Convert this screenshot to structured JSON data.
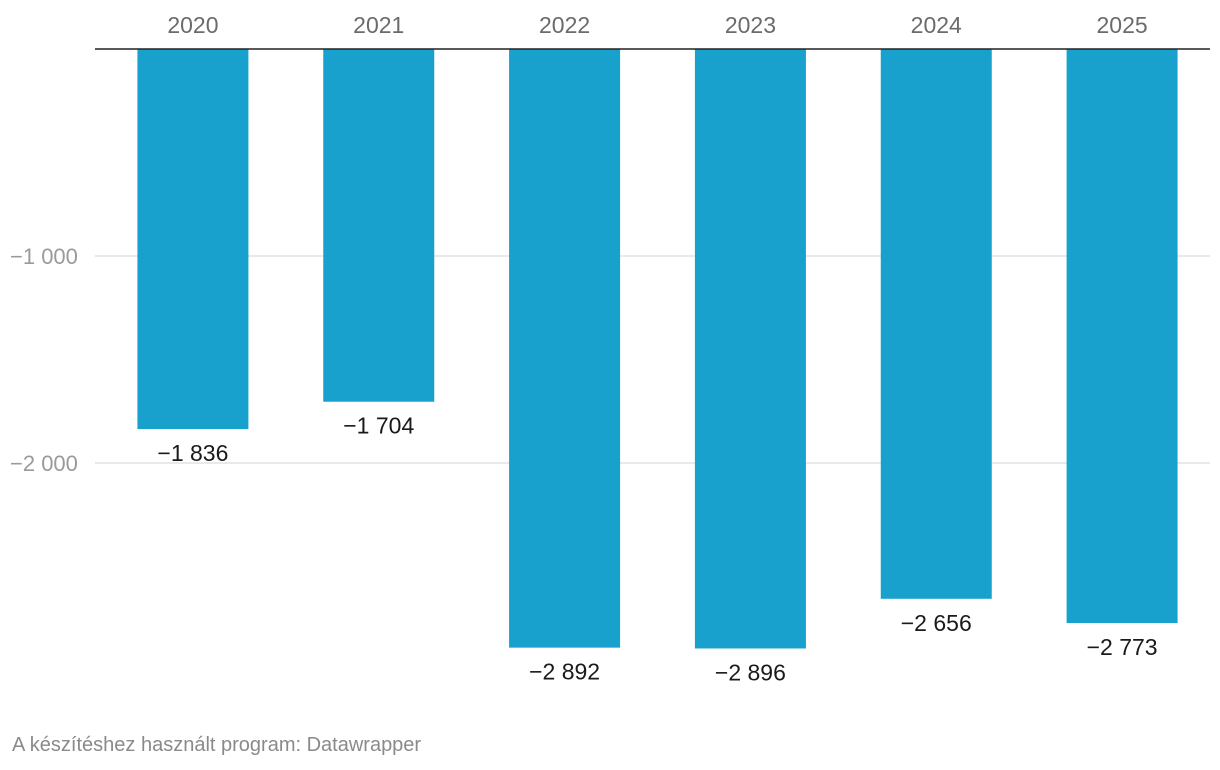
{
  "chart_data": {
    "type": "bar",
    "categories": [
      "2020",
      "2021",
      "2022",
      "2023",
      "2024",
      "2025"
    ],
    "values": [
      -1836,
      -1704,
      -2892,
      -2896,
      -2656,
      -2773
    ],
    "value_labels": [
      "−1 836",
      "−1 704",
      "−2 892",
      "−2 896",
      "−2 656",
      "−2 773"
    ],
    "ylim": [
      -3000,
      0
    ],
    "y_ticks": [
      -1000,
      -2000
    ],
    "y_tick_labels": [
      "−1 000",
      "−2 000"
    ],
    "grid": true,
    "bar_color": "#18a1cd",
    "category_axis_position": "top"
  },
  "footer": {
    "credit": "A készítéshez használt program: Datawrapper"
  }
}
